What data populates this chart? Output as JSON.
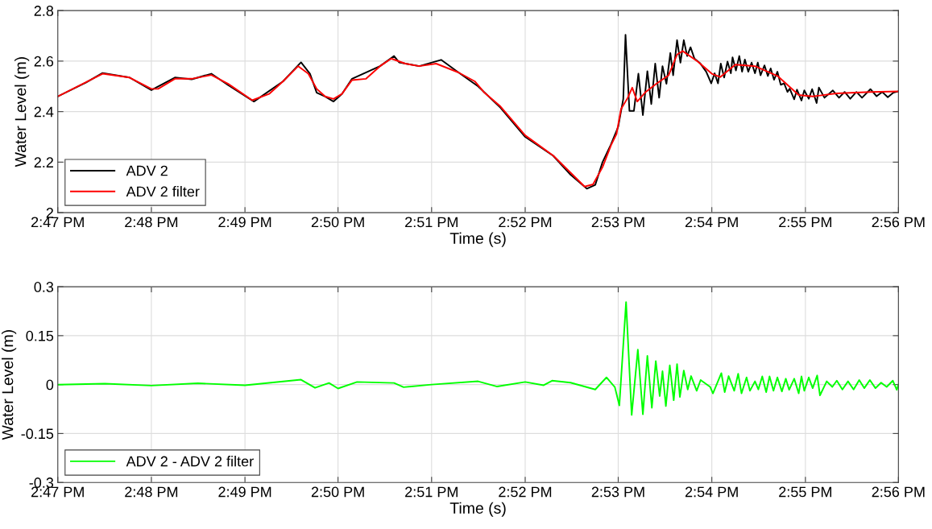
{
  "chart_data": [
    {
      "type": "line",
      "xlabel": "Time (s)",
      "ylabel": "Water Level (m)",
      "xlim": [
        14.7833,
        14.9333
      ],
      "ylim": [
        2,
        2.8
      ],
      "xticks": [
        {
          "value": 14.7833,
          "label": "2:47 PM"
        },
        {
          "value": 14.8,
          "label": "2:48 PM"
        },
        {
          "value": 14.8167,
          "label": "2:49 PM"
        },
        {
          "value": 14.8333,
          "label": "2:50 PM"
        },
        {
          "value": 14.85,
          "label": "2:51 PM"
        },
        {
          "value": 14.8667,
          "label": "2:52 PM"
        },
        {
          "value": 14.8833,
          "label": "2:53 PM"
        },
        {
          "value": 14.9,
          "label": "2:54 PM"
        },
        {
          "value": 14.9167,
          "label": "2:55 PM"
        },
        {
          "value": 14.9333,
          "label": "2:56 PM"
        }
      ],
      "yticks": [
        2,
        2.2,
        2.4,
        2.6,
        2.8
      ],
      "grid": true,
      "legend": "bottom left",
      "series": [
        {
          "name": "ADV 2",
          "color": "#000000",
          "x": [
            14.7833,
            14.7883,
            14.7913,
            14.7961,
            14.8,
            14.8042,
            14.8072,
            14.8107,
            14.8137,
            14.8183,
            14.8235,
            14.8267,
            14.8283,
            14.8295,
            14.831,
            14.8325,
            14.834,
            14.8358,
            14.8408,
            14.8433,
            14.8442,
            14.8478,
            14.8517,
            14.8548,
            14.8583,
            14.8623,
            14.8667,
            14.8717,
            14.8748,
            14.8777,
            14.8792,
            14.8805,
            14.882,
            14.8833,
            14.8842,
            14.8846,
            14.8853,
            14.8861,
            14.8869,
            14.8877,
            14.8885,
            14.8892,
            14.8899,
            14.8906,
            14.8912,
            14.8919,
            14.8926,
            14.8931,
            14.8938,
            14.8944,
            14.895,
            14.8956,
            14.8962,
            14.8969,
            14.8979,
            14.899,
            14.8999,
            14.9005,
            14.9011,
            14.9016,
            14.9022,
            14.9028,
            14.9034,
            14.9037,
            14.9043,
            14.9049,
            14.9054,
            14.9059,
            14.9065,
            14.9071,
            14.9077,
            14.9082,
            14.9087,
            14.9094,
            14.91,
            14.9105,
            14.9111,
            14.9117,
            14.9123,
            14.9129,
            14.9135,
            14.9139,
            14.9147,
            14.9152,
            14.916,
            14.9165,
            14.9173,
            14.9179,
            14.9187,
            14.9191,
            14.9201,
            14.9216,
            14.9227,
            14.9237,
            14.9247,
            14.9258,
            14.9268,
            14.9283,
            14.9294,
            14.9304,
            14.9314,
            14.9324,
            14.9333
          ],
          "values": [
            2.46,
            2.515,
            2.553,
            2.535,
            2.485,
            2.535,
            2.528,
            2.55,
            2.505,
            2.44,
            2.52,
            2.595,
            2.55,
            2.475,
            2.46,
            2.44,
            2.47,
            2.53,
            2.58,
            2.62,
            2.595,
            2.58,
            2.605,
            2.555,
            2.5,
            2.415,
            2.3,
            2.225,
            2.15,
            2.095,
            2.11,
            2.2,
            2.27,
            2.34,
            2.45,
            2.704,
            2.403,
            2.403,
            2.55,
            2.386,
            2.56,
            2.43,
            2.59,
            2.455,
            2.58,
            2.51,
            2.632,
            2.544,
            2.683,
            2.594,
            2.683,
            2.62,
            2.655,
            2.61,
            2.592,
            2.558,
            2.512,
            2.552,
            2.512,
            2.59,
            2.535,
            2.598,
            2.552,
            2.615,
            2.563,
            2.62,
            2.558,
            2.606,
            2.558,
            2.594,
            2.552,
            2.594,
            2.544,
            2.583,
            2.541,
            2.571,
            2.526,
            2.558,
            2.506,
            2.512,
            2.478,
            2.491,
            2.449,
            2.487,
            2.444,
            2.484,
            2.451,
            2.489,
            2.434,
            2.495,
            2.455,
            2.484,
            2.455,
            2.478,
            2.451,
            2.478,
            2.455,
            2.489,
            2.461,
            2.478,
            2.457,
            2.475,
            2.48
          ]
        },
        {
          "name": "ADV 2 filter",
          "color": "#ff0000",
          "x": [
            14.7833,
            14.7913,
            14.7961,
            14.8,
            14.8012,
            14.8042,
            14.8072,
            14.8107,
            14.8137,
            14.818,
            14.821,
            14.8235,
            14.8262,
            14.828,
            14.8295,
            14.831,
            14.8325,
            14.834,
            14.8358,
            14.8383,
            14.8408,
            14.8428,
            14.8453,
            14.8478,
            14.8508,
            14.8548,
            14.8577,
            14.8593,
            14.8623,
            14.8667,
            14.8717,
            14.8748,
            14.8773,
            14.8788,
            14.8805,
            14.882,
            14.883,
            14.8838,
            14.885,
            14.8858,
            14.8867,
            14.8882,
            14.8902,
            14.8923,
            14.8938,
            14.8948,
            14.8975,
            14.9,
            14.9015,
            14.9042,
            14.9077,
            14.9118,
            14.9155,
            14.918,
            14.9222,
            14.9283,
            14.9333
          ],
          "values": [
            2.46,
            2.55,
            2.535,
            2.49,
            2.49,
            2.53,
            2.53,
            2.545,
            2.51,
            2.445,
            2.47,
            2.52,
            2.58,
            2.55,
            2.49,
            2.46,
            2.45,
            2.47,
            2.525,
            2.53,
            2.58,
            2.61,
            2.59,
            2.58,
            2.59,
            2.555,
            2.52,
            2.478,
            2.42,
            2.306,
            2.226,
            2.158,
            2.103,
            2.112,
            2.18,
            2.266,
            2.312,
            2.41,
            2.455,
            2.495,
            2.44,
            2.478,
            2.512,
            2.544,
            2.626,
            2.64,
            2.598,
            2.55,
            2.537,
            2.586,
            2.58,
            2.54,
            2.466,
            2.46,
            2.472,
            2.478,
            2.48
          ]
        }
      ]
    },
    {
      "type": "line",
      "xlabel": "Time (s)",
      "ylabel": "Water Level (m)",
      "xlim": [
        14.7833,
        14.9333
      ],
      "ylim": [
        -0.3,
        0.3
      ],
      "xticks": [
        {
          "value": 14.7833,
          "label": "2:47 PM"
        },
        {
          "value": 14.8,
          "label": "2:48 PM"
        },
        {
          "value": 14.8167,
          "label": "2:49 PM"
        },
        {
          "value": 14.8333,
          "label": "2:50 PM"
        },
        {
          "value": 14.85,
          "label": "2:51 PM"
        },
        {
          "value": 14.8667,
          "label": "2:52 PM"
        },
        {
          "value": 14.8833,
          "label": "2:53 PM"
        },
        {
          "value": 14.9,
          "label": "2:54 PM"
        },
        {
          "value": 14.9167,
          "label": "2:55 PM"
        },
        {
          "value": 14.9333,
          "label": "2:56 PM"
        }
      ],
      "yticks": [
        -0.3,
        -0.15,
        0,
        0.15,
        0.3
      ],
      "grid": true,
      "legend": "bottom left",
      "series": [
        {
          "name": "ADV 2 - ADV 2 filter",
          "color": "#00ff00",
          "x": [
            14.7833,
            14.7917,
            14.8,
            14.8083,
            14.8167,
            14.8267,
            14.8292,
            14.8317,
            14.8333,
            14.8367,
            14.8433,
            14.845,
            14.85,
            14.8583,
            14.8617,
            14.8667,
            14.87,
            14.8715,
            14.8748,
            14.8792,
            14.8812,
            14.8827,
            14.8835,
            14.8847,
            14.8857,
            14.8868,
            14.8877,
            14.8885,
            14.8893,
            14.89,
            14.8907,
            14.8912,
            14.8918,
            14.8925,
            14.8932,
            14.8938,
            14.8943,
            14.895,
            14.8957,
            14.8963,
            14.8973,
            14.898,
            14.8997,
            14.9002,
            14.9017,
            14.9023,
            14.903,
            14.904,
            14.9047,
            14.9053,
            14.9062,
            14.9068,
            14.9077,
            14.9083,
            14.909,
            14.9097,
            14.9103,
            14.911,
            14.9117,
            14.9125,
            14.9132,
            14.9138,
            14.9147,
            14.9155,
            14.916,
            14.9165,
            14.9173,
            14.918,
            14.9188,
            14.9193,
            14.9205,
            14.9215,
            14.9223,
            14.9233,
            14.9243,
            14.9253,
            14.9263,
            14.9272,
            14.9282,
            14.9292,
            14.9302,
            14.9312,
            14.9323,
            14.933,
            14.9333
          ],
          "values": [
            0,
            0.003,
            -0.003,
            0.004,
            -0.002,
            0.015,
            -0.01,
            0.005,
            -0.012,
            0.008,
            0.005,
            -0.008,
            0,
            0.01,
            -0.006,
            0.008,
            -0.002,
            0.012,
            0.006,
            -0.015,
            0.022,
            -0.008,
            -0.064,
            0.253,
            -0.093,
            0.107,
            -0.091,
            0.088,
            -0.071,
            0.072,
            -0.035,
            0.041,
            -0.066,
            0.059,
            -0.048,
            0.063,
            -0.038,
            0.043,
            -0.015,
            0.026,
            -0.019,
            0.014,
            -0.007,
            -0.027,
            0.035,
            -0.023,
            0.026,
            -0.019,
            0.033,
            -0.027,
            0.022,
            -0.019,
            0.01,
            -0.015,
            0.025,
            -0.023,
            0.025,
            -0.019,
            0.022,
            -0.021,
            0.018,
            -0.016,
            0.018,
            -0.027,
            0.025,
            -0.019,
            0.022,
            -0.011,
            0.028,
            -0.033,
            0.01,
            -0.007,
            0.012,
            -0.015,
            0.01,
            -0.015,
            0.014,
            -0.011,
            0.014,
            -0.011,
            0.006,
            -0.007,
            0.012,
            -0.016,
            0
          ]
        }
      ]
    }
  ]
}
